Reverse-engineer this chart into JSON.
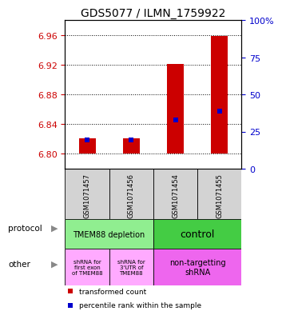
{
  "title": "GDS5077 / ILMN_1759922",
  "samples": [
    "GSM1071457",
    "GSM1071456",
    "GSM1071454",
    "GSM1071455"
  ],
  "ylim_left": [
    6.78,
    6.98
  ],
  "ylim_right": [
    0,
    100
  ],
  "yticks_left": [
    6.8,
    6.84,
    6.88,
    6.92,
    6.96
  ],
  "yticks_right": [
    0,
    25,
    50,
    75,
    100
  ],
  "red_bar_bottom": 6.8,
  "red_bar_tops": [
    6.821,
    6.821,
    6.921,
    6.959
  ],
  "blue_marker_values": [
    6.819,
    6.819,
    6.846,
    6.858
  ],
  "bar_width": 0.38,
  "bar_color": "#cc0000",
  "blue_color": "#0000cc",
  "protocol_labels": [
    "TMEM88 depletion",
    "control"
  ],
  "protocol_colors": [
    "#90ee90",
    "#44cc44"
  ],
  "other_labels": [
    "shRNA for\nfirst exon\nof TMEM88",
    "shRNA for\n3'UTR of\nTMEM88",
    "non-targetting\nshRNA"
  ],
  "other_colors": [
    "#ffaaff",
    "#ffaaff",
    "#ee66ee"
  ],
  "grid_color": "#000000",
  "left_tick_color": "#cc0000",
  "right_tick_color": "#0000cc",
  "background_color": "#ffffff"
}
